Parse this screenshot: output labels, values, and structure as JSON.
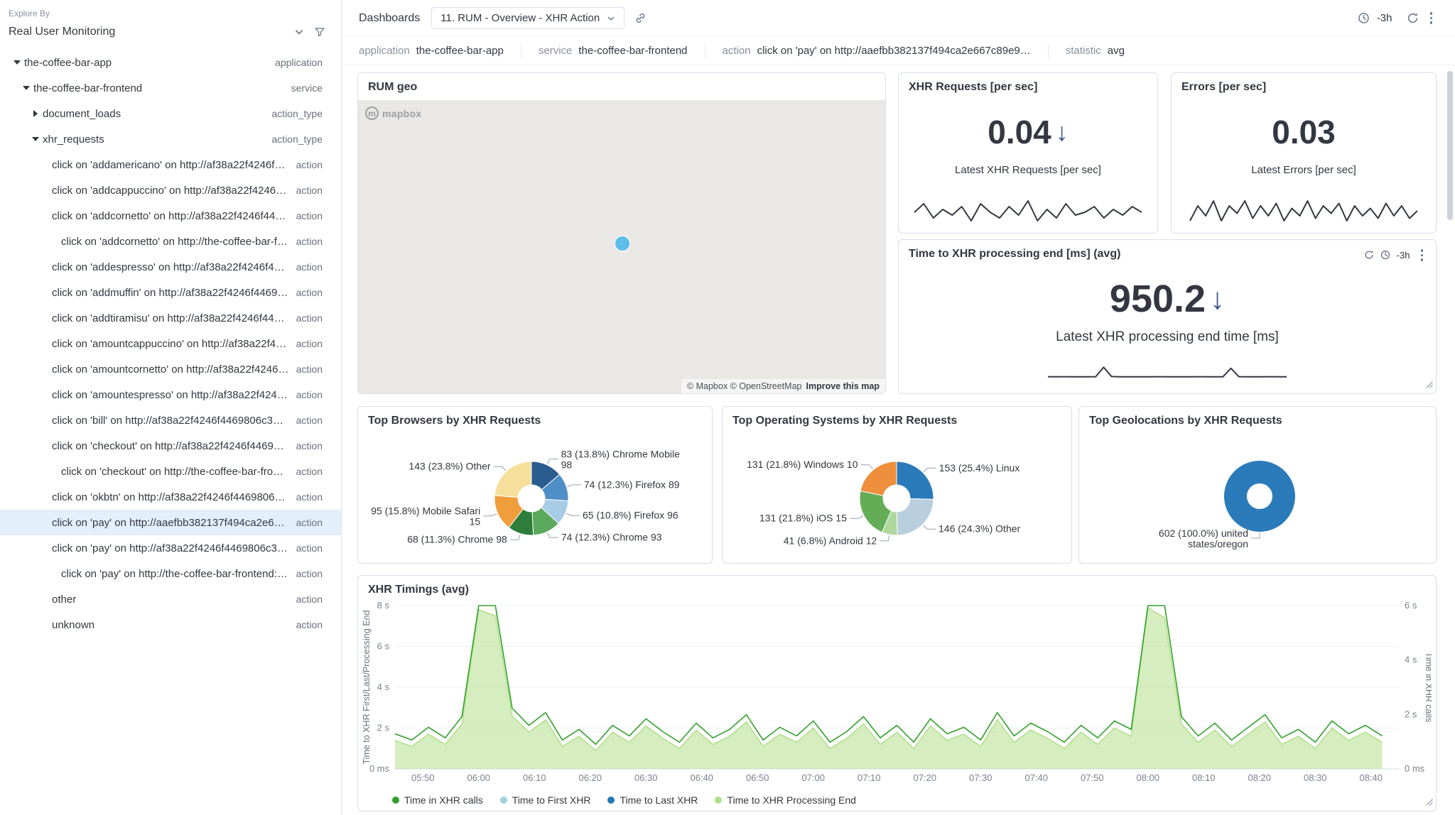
{
  "colors": {
    "selected_row_bg": "#e3f0fb",
    "trend_arrow": "#3d518f",
    "sparkline": "#343741",
    "panel_border": "#d9dee8",
    "map_marker": "#5cbde9"
  },
  "sidebar": {
    "explore_by_label": "Explore By",
    "selector_value": "Real User Monitoring",
    "tree": [
      {
        "label": "the-coffee-bar-app",
        "type": "application",
        "depth": 0,
        "arrow": "down",
        "selected": false
      },
      {
        "label": "the-coffee-bar-frontend",
        "type": "service",
        "depth": 1,
        "arrow": "down",
        "selected": false
      },
      {
        "label": "document_loads",
        "type": "action_type",
        "depth": 2,
        "arrow": "right",
        "selected": false
      },
      {
        "label": "xhr_requests",
        "type": "action_type",
        "depth": 2,
        "arrow": "down",
        "selected": false
      },
      {
        "label": "click on 'addamericano' on http://af38a22f4246f4469…",
        "type": "action",
        "depth": 3,
        "arrow": "none",
        "selected": false
      },
      {
        "label": "click on 'addcappuccino' on http://af38a22f4246f446…",
        "type": "action",
        "depth": 3,
        "arrow": "none",
        "selected": false
      },
      {
        "label": "click on 'addcornetto' on http://af38a22f4246f446980…",
        "type": "action",
        "depth": 3,
        "arrow": "none",
        "selected": false
      },
      {
        "label": "click on 'addcornetto' on http://the-coffee-bar-fronte…",
        "type": "action",
        "depth": 4,
        "arrow": "none",
        "selected": false
      },
      {
        "label": "click on 'addespresso' on http://af38a22f4246f44698…",
        "type": "action",
        "depth": 3,
        "arrow": "none",
        "selected": false
      },
      {
        "label": "click on 'addmuffin' on http://af38a22f4246f4469806…",
        "type": "action",
        "depth": 3,
        "arrow": "none",
        "selected": false
      },
      {
        "label": "click on 'addtiramisu' on http://af38a22f4246f446980…",
        "type": "action",
        "depth": 3,
        "arrow": "none",
        "selected": false
      },
      {
        "label": "click on 'amountcappuccino' on http://af38a22f4246f4…",
        "type": "action",
        "depth": 3,
        "arrow": "none",
        "selected": false
      },
      {
        "label": "click on 'amountcornetto' on http://af38a22f4246f446…",
        "type": "action",
        "depth": 3,
        "arrow": "none",
        "selected": false
      },
      {
        "label": "click on 'amountespresso' on http://af38a22f4246f44…",
        "type": "action",
        "depth": 3,
        "arrow": "none",
        "selected": false
      },
      {
        "label": "click on 'bill' on http://af38a22f4246f4469806c39c5e…",
        "type": "action",
        "depth": 3,
        "arrow": "none",
        "selected": false
      },
      {
        "label": "click on 'checkout' on http://af38a22f4246f4469806c…",
        "type": "action",
        "depth": 3,
        "arrow": "none",
        "selected": false
      },
      {
        "label": "click on 'checkout' on http://the-coffee-bar-frontend…",
        "type": "action",
        "depth": 4,
        "arrow": "none",
        "selected": false
      },
      {
        "label": "click on 'okbtn' on http://af38a22f4246f4469806c39c…",
        "type": "action",
        "depth": 3,
        "arrow": "none",
        "selected": false
      },
      {
        "label": "click on 'pay' on http://aaefbb382137f494ca2e667c89…",
        "type": "action",
        "depth": 3,
        "arrow": "none",
        "selected": true
      },
      {
        "label": "click on 'pay' on http://af38a22f4246f4469806c39c5…",
        "type": "action",
        "depth": 3,
        "arrow": "none",
        "selected": false
      },
      {
        "label": "click on 'pay' on http://the-coffee-bar-frontend:3000",
        "type": "action",
        "depth": 4,
        "arrow": "none",
        "selected": false
      },
      {
        "label": "other",
        "type": "action",
        "depth": 3,
        "arrow": "none",
        "selected": false
      },
      {
        "label": "unknown",
        "type": "action",
        "depth": 3,
        "arrow": "none",
        "selected": false
      }
    ]
  },
  "header": {
    "breadcrumb": "Dashboards",
    "dashboard_title": "11. RUM - Overview - XHR Action",
    "time_range": "-3h"
  },
  "filters": [
    {
      "label": "application",
      "value": "the-coffee-bar-app"
    },
    {
      "label": "service",
      "value": "the-coffee-bar-frontend"
    },
    {
      "label": "action",
      "value": "click on 'pay' on http://aaefbb382137f494ca2e667c89e9…"
    },
    {
      "label": "statistic",
      "value": "avg"
    }
  ],
  "panels": {
    "rum_geo": {
      "title": "RUM geo",
      "map_logo": "mapbox",
      "attribution": "© Mapbox © OpenStreetMap",
      "improve_link": "Improve this map"
    },
    "xhr_requests": {
      "title": "XHR Requests [per sec]",
      "value": "0.04",
      "trend": "down",
      "subtitle": "Latest XHR Requests [per sec]",
      "sparkline": [
        0.041,
        0.044,
        0.039,
        0.042,
        0.04,
        0.043,
        0.038,
        0.044,
        0.041,
        0.039,
        0.043,
        0.04,
        0.045,
        0.038,
        0.042,
        0.039,
        0.044,
        0.04,
        0.041,
        0.043,
        0.039,
        0.042,
        0.04,
        0.043,
        0.041
      ]
    },
    "errors": {
      "title": "Errors [per sec]",
      "value": "0.03",
      "trend": "none",
      "subtitle": "Latest Errors [per sec]",
      "sparkline": [
        0.02,
        0.05,
        0.03,
        0.06,
        0.02,
        0.05,
        0.035,
        0.06,
        0.025,
        0.05,
        0.03,
        0.055,
        0.02,
        0.045,
        0.03,
        0.06,
        0.025,
        0.05,
        0.035,
        0.055,
        0.02,
        0.05,
        0.03,
        0.045,
        0.025,
        0.055,
        0.03,
        0.05,
        0.025,
        0.04
      ]
    },
    "xhr_processing_end": {
      "title": "Time to XHR processing end [ms] (avg)",
      "value": "950.2",
      "trend": "down",
      "subtitle": "Latest XHR processing end time [ms]",
      "time_range": "-3h",
      "sparkline": [
        952,
        950,
        953,
        949,
        951,
        950,
        952,
        1480,
        960,
        950,
        949,
        951,
        950,
        948,
        952,
        950,
        949,
        951,
        950,
        952,
        948,
        950,
        951,
        1420,
        955,
        949,
        951,
        950,
        952,
        949,
        951
      ],
      "sparkline_domain": [
        700,
        1650
      ]
    },
    "top_browsers": {
      "title": "Top Browsers by XHR Requests"
    },
    "top_os": {
      "title": "Top Operating Systems by XHR Requests"
    },
    "top_geo": {
      "title": "Top Geolocations by XHR Requests"
    },
    "xhr_timings": {
      "title": "XHR Timings (avg)"
    }
  },
  "chart_data": [
    {
      "id": "top_browsers",
      "type": "pie",
      "title": "Top Browsers by XHR Requests",
      "slices": [
        {
          "label": "Chrome Mobile 98",
          "value": 83,
          "pct": "13.8",
          "color": "#2b5c8f"
        },
        {
          "label": "Firefox 89",
          "value": 74,
          "pct": "12.3",
          "color": "#4f8fc7"
        },
        {
          "label": "Firefox 96",
          "value": 65,
          "pct": "10.8",
          "color": "#a8cbe6"
        },
        {
          "label": "Chrome 93",
          "value": 74,
          "pct": "12.3",
          "color": "#5aa95c"
        },
        {
          "label": "Chrome 98",
          "value": 68,
          "pct": "11.3",
          "color": "#2e7d3b"
        },
        {
          "label": "Mobile Safari 15",
          "value": 95,
          "pct": "15.8",
          "color": "#f09d3c"
        },
        {
          "label": "Other",
          "value": 143,
          "pct": "23.8",
          "color": "#f6df9a"
        }
      ]
    },
    {
      "id": "top_os",
      "type": "pie",
      "title": "Top Operating Systems by XHR Requests",
      "slices": [
        {
          "label": "Linux",
          "value": 153,
          "pct": "25.4",
          "color": "#2b7bba"
        },
        {
          "label": "Other",
          "value": 146,
          "pct": "24.3",
          "color": "#b9cfde"
        },
        {
          "label": "Android 12",
          "value": 41,
          "pct": "6.8",
          "color": "#aed79c"
        },
        {
          "label": "iOS 15",
          "value": 131,
          "pct": "21.8",
          "color": "#64ad57"
        },
        {
          "label": "Windows 10",
          "value": 131,
          "pct": "21.8",
          "color": "#ef8e3c"
        }
      ]
    },
    {
      "id": "top_geo",
      "type": "pie",
      "title": "Top Geolocations by XHR Requests",
      "slices": [
        {
          "label": "united states/oregon",
          "value": 602,
          "pct": "100.0",
          "color": "#2b7bba"
        }
      ]
    },
    {
      "id": "xhr_timings",
      "type": "area",
      "title": "XHR Timings (avg)",
      "x_domain_minutes": 180,
      "x_ticks": [
        "05:50",
        "06:00",
        "06:10",
        "06:20",
        "06:30",
        "06:40",
        "06:50",
        "07:00",
        "07:10",
        "07:20",
        "07:30",
        "07:40",
        "07:50",
        "08:00",
        "08:10",
        "08:20",
        "08:30",
        "08:40"
      ],
      "left_axis": {
        "title": "Time to XHR First/Last/Processing End",
        "max": 8,
        "ticks": [
          {
            "v": 0,
            "label": "0 ms"
          },
          {
            "v": 2,
            "label": "2 s"
          },
          {
            "v": 4,
            "label": "4 s"
          },
          {
            "v": 6,
            "label": "6 s"
          },
          {
            "v": 8,
            "label": "8 s"
          }
        ]
      },
      "right_axis": {
        "title": "Time in XHR calls",
        "max": 6,
        "ticks": [
          {
            "v": 0,
            "label": "0 ms"
          },
          {
            "v": 2,
            "label": "2 s"
          },
          {
            "v": 4,
            "label": "4 s"
          },
          {
            "v": 6,
            "label": "6 s"
          }
        ]
      },
      "legend": [
        {
          "label": "Time in XHR calls",
          "color": "#33a02c"
        },
        {
          "label": "Time to First XHR",
          "color": "#a6cee3"
        },
        {
          "label": "Time to Last XHR",
          "color": "#1f78b4"
        },
        {
          "label": "Time to XHR Processing End",
          "color": "#b2df8a"
        }
      ],
      "series": [
        {
          "name": "Time to XHR Processing End",
          "axis": "left",
          "style": "area",
          "color": "#b2df8a",
          "values": [
            1.4,
            1.1,
            1.7,
            1.2,
            2.2,
            7.8,
            7.5,
            2.6,
            1.8,
            2.4,
            1.1,
            1.6,
            0.9,
            1.8,
            1.3,
            2.1,
            1.5,
            1.0,
            1.9,
            1.2,
            1.6,
            2.3,
            1.1,
            1.7,
            1.3,
            2.0,
            1.0,
            1.5,
            2.2,
            1.2,
            1.8,
            1.0,
            2.1,
            1.4,
            1.7,
            1.1,
            2.4,
            1.3,
            1.9,
            1.5,
            1.0,
            1.8,
            1.2,
            2.0,
            1.6,
            7.9,
            7.4,
            2.2,
            1.3,
            1.9,
            1.1,
            1.7,
            2.3,
            1.2,
            1.6,
            1.0,
            2.0,
            1.4,
            1.8,
            1.3
          ]
        },
        {
          "name": "Time in XHR calls",
          "axis": "right",
          "style": "line",
          "color": "#33a02c",
          "values": [
            1.29,
            1.06,
            1.53,
            1.14,
            1.92,
            6,
            6,
            2.23,
            1.6,
            2.07,
            1.06,
            1.45,
            0.9,
            1.6,
            1.21,
            1.84,
            1.37,
            0.98,
            1.68,
            1.14,
            1.45,
            1.99,
            1.06,
            1.53,
            1.21,
            1.76,
            0.98,
            1.37,
            1.92,
            1.14,
            1.6,
            0.98,
            1.84,
            1.29,
            1.53,
            1.06,
            2.07,
            1.21,
            1.68,
            1.37,
            0.98,
            1.6,
            1.14,
            1.76,
            1.45,
            6,
            6,
            1.92,
            1.21,
            1.68,
            1.06,
            1.53,
            1.99,
            1.14,
            1.45,
            0.98,
            1.76,
            1.29,
            1.6,
            1.21
          ]
        }
      ]
    }
  ]
}
